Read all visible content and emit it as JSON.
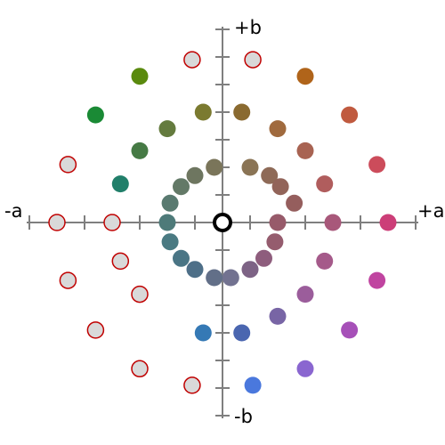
{
  "axes": {
    "plus_b": "+b",
    "minus_b": "-b",
    "minus_a": "-a",
    "plus_a": "+a",
    "axis_color": "#7f7f7f"
  },
  "center_marker": {
    "stroke": "#000000",
    "fill": "#ffffff"
  },
  "chart_data": {
    "type": "scatter",
    "xlabel_neg": "-a",
    "xlabel_pos": "+a",
    "ylabel_pos": "+b",
    "ylabel_neg": "-b",
    "xlim": [
      -7,
      7
    ],
    "ylim": [
      -7,
      7
    ],
    "center": [
      0,
      0
    ],
    "out_of_gamut_style": {
      "fill": "#d9d9d9",
      "stroke": "#c00000"
    },
    "points": [
      {
        "a": 1.0,
        "b": 2.0,
        "color": "#8a7455"
      },
      {
        "a": 1.7,
        "b": 1.7,
        "color": "#8e6a57"
      },
      {
        "a": 2.1,
        "b": 1.3,
        "color": "#926459"
      },
      {
        "a": 2.6,
        "b": 0.7,
        "color": "#955e5d"
      },
      {
        "a": 2.0,
        "b": 0.0,
        "color": "#975a6a"
      },
      {
        "a": 1.9,
        "b": -0.7,
        "color": "#955c6e"
      },
      {
        "a": 1.5,
        "b": -1.3,
        "color": "#8e5d7d"
      },
      {
        "a": 1.0,
        "b": -1.7,
        "color": "#7d6385"
      },
      {
        "a": 0.3,
        "b": -2.0,
        "color": "#727290"
      },
      {
        "a": -0.3,
        "b": -2.0,
        "color": "#626f88"
      },
      {
        "a": -1.0,
        "b": -1.7,
        "color": "#4e6f88"
      },
      {
        "a": -1.5,
        "b": -1.3,
        "color": "#4a7585"
      },
      {
        "a": -1.9,
        "b": -0.7,
        "color": "#4a7a82"
      },
      {
        "a": -2.0,
        "b": 0.0,
        "color": "#4e7a79"
      },
      {
        "a": -1.9,
        "b": 0.7,
        "color": "#597a70"
      },
      {
        "a": -1.5,
        "b": 1.3,
        "color": "#637967"
      },
      {
        "a": -1.0,
        "b": 1.7,
        "color": "#6e7660"
      },
      {
        "a": -0.3,
        "b": 2.0,
        "color": "#7a755a"
      },
      {
        "a": 0.7,
        "b": 4.0,
        "color": "#8a6a30"
      },
      {
        "a": 2.0,
        "b": 3.4,
        "color": "#a06a3e"
      },
      {
        "a": 3.0,
        "b": 2.6,
        "color": "#a86352"
      },
      {
        "a": 3.7,
        "b": 1.4,
        "color": "#b05d5d"
      },
      {
        "a": 4.0,
        "b": 0.0,
        "color": "#a8587a"
      },
      {
        "a": 3.7,
        "b": -1.4,
        "color": "#a55a8a"
      },
      {
        "a": 3.0,
        "b": -2.6,
        "color": "#9b5d9b"
      },
      {
        "a": 2.0,
        "b": -3.4,
        "color": "#7865a5"
      },
      {
        "a": 0.7,
        "b": -4.0,
        "color": "#4a66b0"
      },
      {
        "a": -0.7,
        "b": -4.0,
        "color": "#3579b5"
      },
      {
        "a": -3.0,
        "b": -2.6,
        "out": true
      },
      {
        "a": -3.7,
        "b": -1.4,
        "out": true
      },
      {
        "a": -4.0,
        "b": 0.0,
        "out": true
      },
      {
        "a": -3.7,
        "b": 1.4,
        "color": "#217f6a"
      },
      {
        "a": -3.0,
        "b": 2.6,
        "color": "#467a45"
      },
      {
        "a": -2.0,
        "b": 3.4,
        "color": "#647b3e"
      },
      {
        "a": -0.7,
        "b": 4.0,
        "color": "#7b7a30"
      },
      {
        "a": 1.1,
        "b": 5.9,
        "out": true
      },
      {
        "a": 3.0,
        "b": 5.3,
        "color": "#b0641a"
      },
      {
        "a": 4.6,
        "b": 3.9,
        "color": "#c05a3f"
      },
      {
        "a": 5.6,
        "b": 2.1,
        "color": "#cc4c5b"
      },
      {
        "a": 6.0,
        "b": 0.0,
        "color": "#cc3e78"
      },
      {
        "a": 5.6,
        "b": -2.1,
        "color": "#c044a0"
      },
      {
        "a": 4.6,
        "b": -3.9,
        "color": "#a650b8"
      },
      {
        "a": 3.0,
        "b": -5.3,
        "color": "#8a66d0"
      },
      {
        "a": 1.1,
        "b": -5.9,
        "color": "#4a78dd"
      },
      {
        "a": -1.1,
        "b": -5.9,
        "out": true
      },
      {
        "a": -3.0,
        "b": -5.3,
        "out": true
      },
      {
        "a": -4.6,
        "b": -3.9,
        "out": true
      },
      {
        "a": -5.6,
        "b": -2.1,
        "out": true
      },
      {
        "a": -6.0,
        "b": 0.0,
        "out": true
      },
      {
        "a": -5.6,
        "b": 2.1,
        "out": true
      },
      {
        "a": -4.6,
        "b": 3.9,
        "color": "#1a8a35"
      },
      {
        "a": -3.0,
        "b": 5.3,
        "color": "#5a8a0e"
      },
      {
        "a": -1.1,
        "b": 5.9,
        "out": true
      }
    ]
  }
}
